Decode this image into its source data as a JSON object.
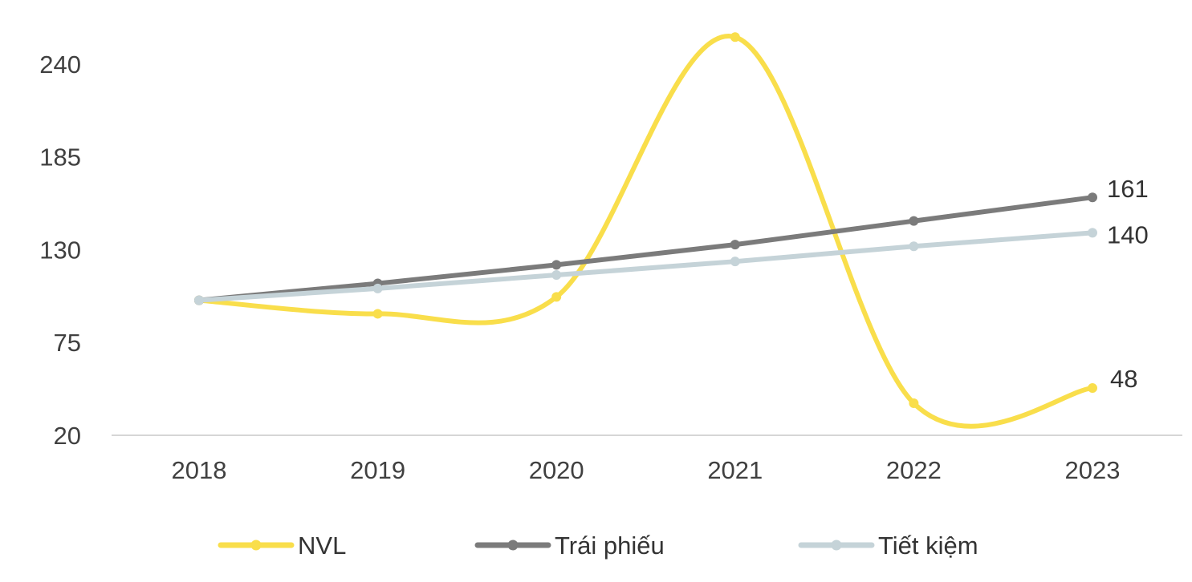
{
  "chart_data": {
    "type": "line",
    "title": "",
    "xlabel": "",
    "ylabel": "",
    "categories": [
      "2018",
      "2019",
      "2020",
      "2021",
      "2022",
      "2023"
    ],
    "y_ticks": [
      20,
      75,
      130,
      185,
      240
    ],
    "ylim": [
      20,
      260
    ],
    "grid": false,
    "legend_position": "bottom",
    "series": [
      {
        "name": "NVL",
        "color": "#F9DE4B",
        "smooth": true,
        "values": [
          100,
          92,
          102,
          256,
          39,
          48
        ],
        "end_label": "48"
      },
      {
        "name": "Trái phiếu",
        "color": "#7B7B7B",
        "smooth": false,
        "values": [
          100,
          110,
          121,
          133,
          147,
          161
        ],
        "end_label": "161"
      },
      {
        "name": "Tiết kiệm",
        "color": "#C5D3D8",
        "smooth": false,
        "values": [
          100,
          107,
          115,
          123,
          132,
          140
        ],
        "end_label": "140"
      }
    ]
  }
}
